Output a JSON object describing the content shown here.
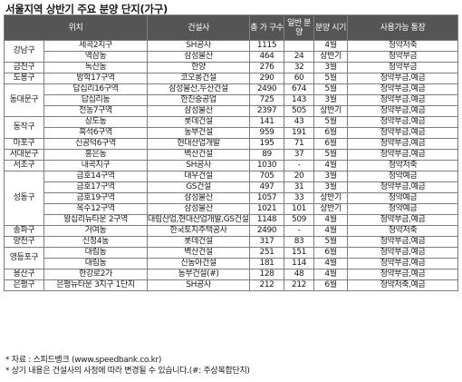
{
  "title": "서울지역 상반기 주요 분양 단지(가구)",
  "table": {
    "headers": [
      "위치",
      "건설사",
      "총 가 구수",
      "일반 분양",
      "분양 시기",
      "사용가능 통장"
    ],
    "groups": [
      {
        "region": "강남구",
        "rows": [
          {
            "location": "세곡2지구",
            "builder": "SH공사",
            "total": "1115",
            "general": "",
            "timing": "4월",
            "account": "청약저축"
          },
          {
            "location": "역삼동",
            "builder": "삼성물산",
            "total": "464",
            "general": "24",
            "timing": "상반기",
            "account": "청약부금"
          }
        ]
      },
      {
        "region": "금천구",
        "rows": [
          {
            "location": "독산동",
            "builder": "한양",
            "total": "276",
            "general": "32",
            "timing": "3월",
            "account": "청약부금"
          }
        ]
      },
      {
        "region": "도봉구",
        "rows": [
          {
            "location": "방학17구역",
            "builder": "코오롱건설",
            "total": "290",
            "general": "60",
            "timing": "5월",
            "account": "청약부금,예금"
          }
        ]
      },
      {
        "region": "동대문구",
        "rows": [
          {
            "location": "답십리16구역",
            "builder": "삼성물산,두산건설",
            "total": "2490",
            "general": "674",
            "timing": "5월",
            "account": "청약부금,예금"
          },
          {
            "location": "답십리동",
            "builder": "한진중공업",
            "total": "725",
            "general": "143",
            "timing": "3월",
            "account": "청약부금,예금"
          },
          {
            "location": "전농7구역",
            "builder": "삼성물산",
            "total": "2397",
            "general": "505",
            "timing": "상반기",
            "account": "청약부금,예금"
          }
        ]
      },
      {
        "region": "동작구",
        "rows": [
          {
            "location": "상도동",
            "builder": "롯데건설",
            "total": "141",
            "general": "43",
            "timing": "5월",
            "account": "청약부금,예금"
          },
          {
            "location": "흑석6구역",
            "builder": "동부건설",
            "total": "959",
            "general": "191",
            "timing": "6월",
            "account": "청약부금,예금"
          }
        ]
      },
      {
        "region": "마포구",
        "rows": [
          {
            "location": "신공덕6구역",
            "builder": "현대산업개발",
            "total": "195",
            "general": "71",
            "timing": "6월",
            "account": "청약부금,예금"
          }
        ]
      },
      {
        "region": "서대문구",
        "rows": [
          {
            "location": "홍은동",
            "builder": "벽산건설",
            "total": "89",
            "general": "37",
            "timing": "5월",
            "account": "청약부금,예금"
          }
        ]
      },
      {
        "region": "서초구",
        "rows": [
          {
            "location": "내곡지구",
            "builder": "SH공사",
            "total": "1030",
            "general": "-",
            "timing": "4월",
            "account": "청약저축"
          }
        ]
      },
      {
        "region": "성동구",
        "rows": [
          {
            "location": "금호14구역",
            "builder": "대우건설",
            "total": "705",
            "general": "20",
            "timing": "3월",
            "account": "청약예금"
          },
          {
            "location": "금호17구역",
            "builder": "GS건설",
            "total": "497",
            "general": "31",
            "timing": "3월",
            "account": "청약부금,예금"
          },
          {
            "location": "금호19구역",
            "builder": "삼성물산",
            "total": "1057",
            "general": "33",
            "timing": "상반기",
            "account": "청약예금"
          },
          {
            "location": "옥수12구역",
            "builder": "삼성물산",
            "total": "1021",
            "general": "101",
            "timing": "상반기",
            "account": "청약예금"
          },
          {
            "location": "왕십리뉴타운 2구역",
            "builder": "대림산업,현대산업개발,GS건설,삼성물산",
            "total": "1148",
            "general": "509",
            "timing": "4월",
            "account": "청약부금,예금",
            "tall": true
          }
        ]
      },
      {
        "region": "송파구",
        "rows": [
          {
            "location": "거여동",
            "builder": "한국토지주택공사",
            "total": "2490",
            "general": "-",
            "timing": "4월",
            "account": "청약저축"
          }
        ]
      },
      {
        "region": "양천구",
        "rows": [
          {
            "location": "신정4동",
            "builder": "롯데건설",
            "total": "317",
            "general": "83",
            "timing": "5월",
            "account": "청약부금,예금"
          }
        ]
      },
      {
        "region": "영등포구",
        "rows": [
          {
            "location": "대림동",
            "builder": "벽산건설",
            "total": "251",
            "general": "151",
            "timing": "6월",
            "account": "청약부금,예금"
          },
          {
            "location": "대림동",
            "builder": "신동아건설",
            "total": "181",
            "general": "114",
            "timing": "4월",
            "account": "청약부금,예금"
          }
        ]
      },
      {
        "region": "용산구",
        "rows": [
          {
            "location": "한강로2가",
            "builder": "동부건설(#)",
            "total": "128",
            "general": "48",
            "timing": "4월",
            "account": "청약부금,예금"
          }
        ]
      },
      {
        "region": "은평구",
        "rows": [
          {
            "location": "은평뉴타운 3지구 1단지",
            "builder": "SH공사",
            "total": "212",
            "general": "212",
            "timing": "6월",
            "account": "청약저축,예금"
          }
        ]
      }
    ]
  },
  "notes": {
    "source": "* 자료 : 스피드뱅크 (www.speedbank.co.kr)",
    "disclaimer": "* 상기 내용은 건설사의 사정에 따라 변경될 수 있습니다.(#: 주상복합단지)"
  }
}
